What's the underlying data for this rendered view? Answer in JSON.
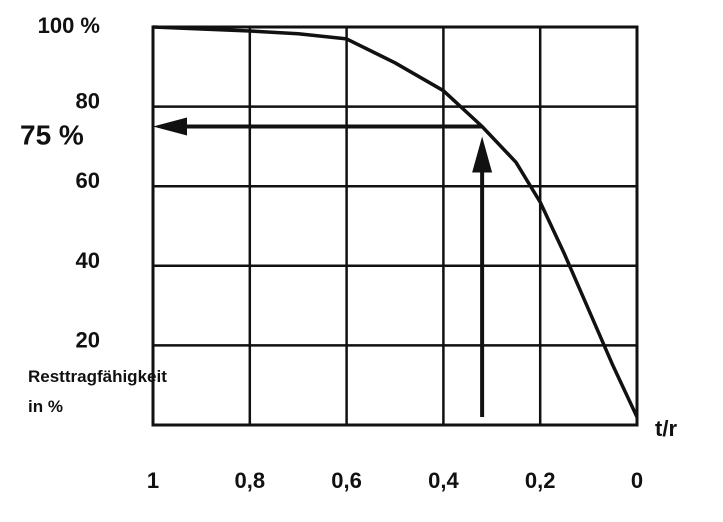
{
  "chart_data": {
    "type": "line",
    "x_reversed": true,
    "xlim": [
      1,
      0
    ],
    "ylim": [
      0,
      100
    ],
    "x_ticks": [
      {
        "value": 1,
        "label": "1"
      },
      {
        "value": 0.8,
        "label": "0,8"
      },
      {
        "value": 0.6,
        "label": "0,6"
      },
      {
        "value": 0.4,
        "label": "0,4"
      },
      {
        "value": 0.2,
        "label": "0,2"
      },
      {
        "value": 0,
        "label": "0"
      }
    ],
    "y_ticks": [
      {
        "value": 100,
        "label": "100 %"
      },
      {
        "value": 80,
        "label": "80"
      },
      {
        "value": 60,
        "label": "60"
      },
      {
        "value": 40,
        "label": "40"
      },
      {
        "value": 20,
        "label": "20"
      }
    ],
    "xlabel": "t/r",
    "ylabel": [
      "Resttragfähigkeit",
      "in %"
    ],
    "grid": true,
    "series": [
      {
        "x": [
          1,
          0.9,
          0.8,
          0.7,
          0.6,
          0.5,
          0.4,
          0.32,
          0.25,
          0.2,
          0.15,
          0.1,
          0.05,
          0
        ],
        "y": [
          100,
          99.5,
          99,
          98.3,
          97,
          91,
          84,
          75,
          66,
          56,
          43,
          29,
          15,
          2
        ]
      }
    ],
    "annotations": [
      {
        "type": "arrow-up",
        "x": 0.32,
        "from_y": 2,
        "to_y": 72
      },
      {
        "type": "arrow-left",
        "y": 75,
        "from_x": 0.32,
        "to_x": 1,
        "label": "75 %"
      }
    ]
  }
}
